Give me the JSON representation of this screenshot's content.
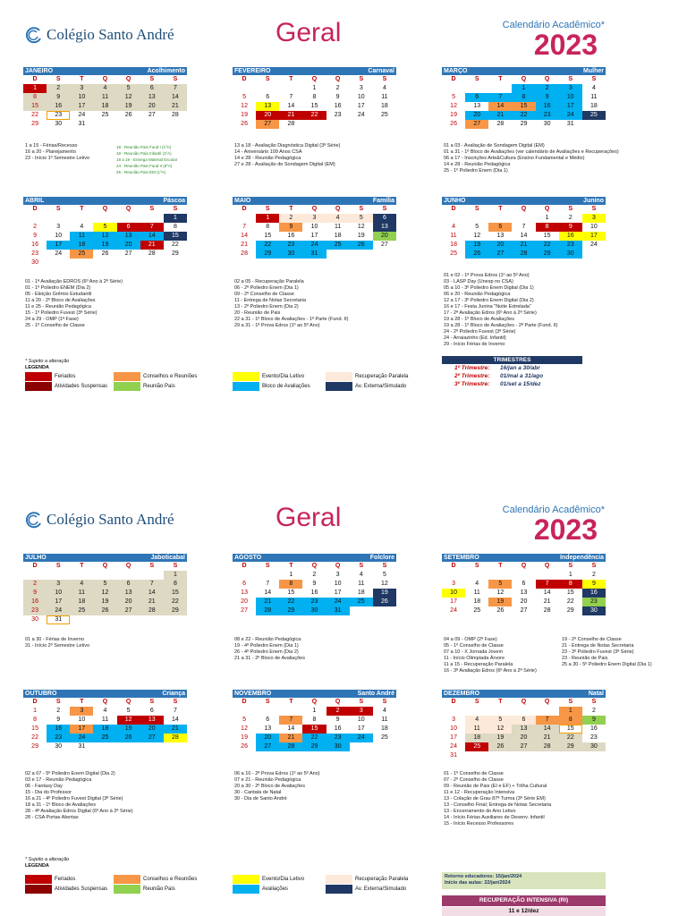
{
  "header": {
    "school": "Colégio Santo André",
    "title": "Geral",
    "calendar_label": "Calendário Acadêmico*",
    "year": "2023"
  },
  "dow": [
    "D",
    "S",
    "T",
    "Q",
    "Q",
    "S",
    "S"
  ],
  "months": [
    {
      "id": "jan",
      "name": "JANEIRO",
      "theme": "Acolhimento",
      "start": 0,
      "days": 31,
      "fills": {
        "1": "fer",
        "2": "tan",
        "3": "tan",
        "4": "tan",
        "5": "tan",
        "6": "tan",
        "7": "tan",
        "8": "tan",
        "9": "tan",
        "10": "tan",
        "11": "tan",
        "12": "tan",
        "13": "tan",
        "14": "tan",
        "15": "tan",
        "16": "tan",
        "17": "tan",
        "18": "tan",
        "19": "tan",
        "20": "tan",
        "21": "tan",
        "23": "box"
      }
    },
    {
      "id": "fev",
      "name": "FEVEREIRO",
      "theme": "Carnaval",
      "start": 3,
      "days": 28,
      "fills": {
        "13": "evt",
        "20": "fer",
        "21": "fer",
        "22": "fer",
        "27": "con"
      }
    },
    {
      "id": "mar",
      "name": "MARÇO",
      "theme": "Mulher",
      "start": 3,
      "days": 31,
      "fills": {
        "1": "blo",
        "2": "blo",
        "3": "blo",
        "6": "blo",
        "7": "blo",
        "8": "blo",
        "9": "blo",
        "10": "blo",
        "14": "con",
        "15": "con",
        "16": "blo",
        "17": "blo",
        "20": "blo",
        "21": "blo",
        "22": "blo",
        "23": "blo",
        "24": "blo",
        "25": "ext",
        "27": "con"
      }
    },
    {
      "id": "abr",
      "name": "ABRIL",
      "theme": "Páscoa",
      "start": 6,
      "days": 30,
      "fills": {
        "1": "ext",
        "5": "evt",
        "6": "fer",
        "7": "fer",
        "11": "blo",
        "12": "blo",
        "13": "blo",
        "14": "blo",
        "15": "ext",
        "17": "blo",
        "18": "blo",
        "19": "blo",
        "20": "blo",
        "21": "fer",
        "25": "con"
      }
    },
    {
      "id": "mai",
      "name": "MAIO",
      "theme": "Família",
      "start": 1,
      "days": 31,
      "fills": {
        "1": "fer",
        "2": "rec",
        "3": "rec",
        "4": "rec",
        "5": "rec",
        "6": "ext",
        "9": "con",
        "13": "ext",
        "20": "pais",
        "22": "blo",
        "23": "blo",
        "24": "blo",
        "25": "blo",
        "26": "blo",
        "29": "blo",
        "30": "blo",
        "31": "blo"
      }
    },
    {
      "id": "jun",
      "name": "JUNHO",
      "theme": "Junino",
      "start": 4,
      "days": 30,
      "fills": {
        "3": "evt",
        "6": "con",
        "8": "fer",
        "9": "fer",
        "16": "evt",
        "17": "evt",
        "19": "blo",
        "20": "blo",
        "21": "blo",
        "22": "blo",
        "23": "blo",
        "26": "blo",
        "27": "blo",
        "28": "blo",
        "29": "blo",
        "30": "blo"
      }
    },
    {
      "id": "jul",
      "name": "JULHO",
      "theme": "Jaboticabal",
      "start": 6,
      "days": 31,
      "fills": {
        "1": "tan",
        "2": "tan",
        "3": "tan",
        "4": "tan",
        "5": "tan",
        "6": "tan",
        "7": "tan",
        "8": "tan",
        "9": "tan",
        "10": "tan",
        "11": "tan",
        "12": "tan",
        "13": "tan",
        "14": "tan",
        "15": "tan",
        "16": "tan",
        "17": "tan",
        "18": "tan",
        "19": "tan",
        "20": "tan",
        "21": "tan",
        "22": "tan",
        "23": "tan",
        "24": "tan",
        "25": "tan",
        "26": "tan",
        "27": "tan",
        "28": "tan",
        "29": "tan",
        "31": "box"
      }
    },
    {
      "id": "ago",
      "name": "AGOSTO",
      "theme": "Folclore",
      "start": 2,
      "days": 31,
      "fills": {
        "8": "con",
        "19": "ext",
        "21": "blo",
        "22": "blo",
        "23": "blo",
        "24": "blo",
        "25": "blo",
        "26": "ext",
        "28": "blo",
        "29": "blo",
        "30": "blo",
        "31": "blo"
      }
    },
    {
      "id": "set",
      "name": "SETEMBRO",
      "theme": "Independência",
      "start": 5,
      "days": 30,
      "fills": {
        "5": "con",
        "7": "fer",
        "8": "fer",
        "9": "evt",
        "10": "evt",
        "16": "ext",
        "19": "con",
        "23": "pais",
        "30": "ext"
      }
    },
    {
      "id": "out",
      "name": "OUTUBRO",
      "theme": "Criança",
      "start": 0,
      "days": 31,
      "fills": {
        "3": "con",
        "12": "fer",
        "13": "fer",
        "16": "blo",
        "17": "con",
        "18": "blo",
        "19": "blo",
        "20": "blo",
        "21": "blo",
        "23": "blo",
        "24": "blo",
        "25": "blo",
        "26": "blo",
        "27": "blo",
        "28": "evt"
      }
    },
    {
      "id": "nov",
      "name": "NOVEMBRO",
      "theme": "Santo André",
      "start": 3,
      "days": 30,
      "fills": {
        "2": "fer",
        "3": "fer",
        "7": "con",
        "15": "fer",
        "20": "blo",
        "21": "con",
        "22": "blo",
        "23": "blo",
        "24": "blo",
        "27": "blo",
        "28": "blo",
        "29": "blo",
        "30": "blo"
      }
    },
    {
      "id": "dez",
      "name": "DEZEMBRO",
      "theme": "Natal",
      "start": 5,
      "days": 31,
      "fills": {
        "1": "con",
        "4": "rec",
        "5": "rec",
        "6": "rec",
        "7": "con",
        "8": "con",
        "9": "pais",
        "11": "rec",
        "12": "rec",
        "13": "tan",
        "14": "tan",
        "15": "box",
        "18": "tan",
        "19": "tan",
        "20": "tan",
        "21": "tan",
        "22": "tan",
        "25": "fer",
        "26": "tan",
        "27": "tan",
        "28": "tan",
        "29": "tan",
        "30": "tan"
      }
    }
  ],
  "notes": {
    "jan": [
      "1 a 15 - Férias/Recesso",
      "16 a 20 - Planejamento",
      "23 - Início 1º Semestre Letivo"
    ],
    "jan_small": [
      "18 - Reunião Pais Fund I (1ºA)",
      "18 - Reunião Pais Infantil (1ºA)",
      "18 a 19 - Entrega Material Escolar",
      "24 - Reunião Pais Fund II (6ºA)",
      "25 - Reunião Pais EM (1ºA)"
    ],
    "fev": [
      "13 a 18 - Avaliação Diagnóstica Digital (3ª Série)",
      "14 - Aniversário 109 Anos CSA",
      "14 e 28 - Reunião Pedagógica",
      "27 e 28 - Avaliação de Sondagem Digital (EM)"
    ],
    "mar": [
      "01 a 03 - Avaliação de Sondagem Digital (EM)",
      "01 a 31 - 1º Bloco de Avaliações (ver calendário de Avaliações e Recuperações)",
      "06 a 17 - Inscrições Arte&Cultura (Ensino Fundamental e Médio)",
      "14 e 28 - Reunião Pedagógica",
      "25 - 1º Poliedro Enem (Dia 1)"
    ],
    "abr": [
      "01 - 1ª Avaliação EDROS (6º Ano à 2ª Série)",
      "01 - 1º Poliedro ENEM (Dia 2)",
      "05 - Eleição Grêmio Estudantil",
      "11 a 20 - 2º Bloco de Avaliações",
      "11 e 25 - Reunião Pedagógica",
      "15 - 1º Poliedro Fuvest (3ª Série)",
      "24 a 29 - OMP (1ª Fase)",
      "25 - 1º Conselho de Classe"
    ],
    "mai": [
      "02 a 05 - Recuperação Paralela",
      "06 - 2º Poliedro Enem (Dia 1)",
      "09 - 2º Conselho de Classe",
      "11 - Entrega de Notas Secretaria",
      "13 - 2º Poliedro Enem (Dia 2)",
      "20 - Reunião de Pais",
      "22 a 31 - 1º Bloco de Avaliações - 1ª Parte (Fund. II)",
      "29 a 31 - 1ª Prova Edros (1º ao 5º Ano)"
    ],
    "jun": [
      "01 e 02 - 1ª Prova Edros (1º ao 5º Ano)",
      "03 - LASP Day (Unesp no CSA)",
      "05 a 10 - 3º Poliedro Enem Digital (Dia 1)",
      "06 e 20 - Reunião Pedagógica",
      "12 a 17 - 3º Poliedro Enem Digital (Dia 2)",
      "16 e 17 - Festa Junina \"Noite Estrelada\"",
      "17 - 2ª Avaliação Edros (6º Ano à 2ª Série)",
      "19 a 28 - 1º Bloco de Avaliações",
      "19 a 28 - 1º Bloco de Avaliações - 2ª Parte (Fund. II)",
      "24 - 2º Poliedro Fuvest (3ª Série)",
      "24 - Arraiazinho (Ed. Infantil)",
      "29 - Início Férias de Inverno"
    ],
    "jul": [
      "01 a 30 - Férias de Inverno",
      "31 - Início 2º Semestre Letivo"
    ],
    "ago": [
      "08 e 22 - Reunião Pedagógica",
      "19 - 4º Poliedro Enem (Dia 1)",
      "26 - 4º Poliedro Enem (Dia 2)",
      "21 a 31 - 2º Bloco de Avaliações"
    ],
    "set_a": [
      "04 a 09 - OMP (2ª Fase)",
      "05 - 1º Conselho de Classe",
      "07 a 10 - X Jornada Jovem",
      "11 - Início Olimpíada Árvore",
      "11 a 15 - Recuperação Paralela",
      "16 - 3ª Avaliação Edros (6º Ano à 2ª Série)"
    ],
    "set_b": [
      "19 - 2º Conselho de Classe",
      "21 - Entrega de Notas Secretaria",
      "23 - 3º Poliedro Fuvest (3ª Série)",
      "23 - Reunião de Pais",
      "25 a 30 - 5º Poliedro Enem Digital (Dia 1)"
    ],
    "out": [
      "02 a 07 - 5º Poliedro Enem Digital (Dia 2)",
      "03 e 17 - Reunião Pedagógica",
      "06 - Fantasy Day",
      "15 - Dia do Professor",
      "16 a 21 - 4º Poliedro Fuvest Digital (3ª Série)",
      "18 a 31 - 1º Bloco de Avaliações",
      "28 - 4ª Avaliação Edros Digital (6º Ano à 2ª Série)",
      "28 - CSA Portas Abertas"
    ],
    "nov": [
      "06 a 10 - 2ª Prova Edros (1º ao 5º Ano)",
      "07 e 21 - Reunião Pedagógica",
      "20 a 30 - 2º Bloco de Avaliações",
      "30 - Cantata de Natal",
      "30 - Dia de Santo André"
    ],
    "dez": [
      "01 - 1º Conselho de Classe",
      "07 - 2º Conselho de Classe",
      "09 - Reunião de Pais (EI e EF) + Trilha Cultural",
      "11 e 12 - Recuperação Intensiva",
      "13 - Colação de Grau 87ª Turma (3ª Série EM)",
      "13 - Conselho Final; Entrega de Notas Secretaria",
      "13 - Encerramento do Ano Letivo",
      "14 - Início Férias Auxiliares de Desenv. Infantil",
      "15 - Início Recesso Professores"
    ]
  },
  "legend": {
    "note": "* Sujeito a alteração",
    "title": "LEGENDA",
    "items": {
      "fer": "Feriados",
      "sus": "Atividades Suspensas",
      "con": "Conselhos e Reuniões",
      "pais": "Reunião Pais",
      "evt": "Evento/Dia Letivo",
      "blo1": "Bloco de Avaliações",
      "blo2": "Avaliações",
      "rec": "Recuperação Paralela",
      "ext": "Av. Externa/Simulado"
    }
  },
  "trimestres": {
    "title": "TRIMESTRES",
    "rows": [
      {
        "label": "1º Trimestre:",
        "dates": "16/jan a 30/abr"
      },
      {
        "label": "2º Trimestre:",
        "dates": "01/mai a 31/ago"
      },
      {
        "label": "3º Trimestre:",
        "dates": "01/set a 15/dez"
      }
    ]
  },
  "retorno": {
    "line1": "Retorno educadores: 15/jan/2024",
    "line2": "Início das aulas: 22/jan/2024"
  },
  "recuperacao": {
    "title": "RECUPERAÇÃO INTENSIVA (RI)",
    "dates": "11 e 12/dez"
  },
  "colors": {
    "blue": "#2e75b6",
    "brand": "#c8245c",
    "feriado": "#c00000",
    "suspensa": "#8b0000",
    "conselho": "#f79646",
    "pais": "#92d050",
    "evento": "#ffff00",
    "bloco": "#00b0f0",
    "recuperacao": "#fde9d9",
    "externa": "#1f3864"
  }
}
